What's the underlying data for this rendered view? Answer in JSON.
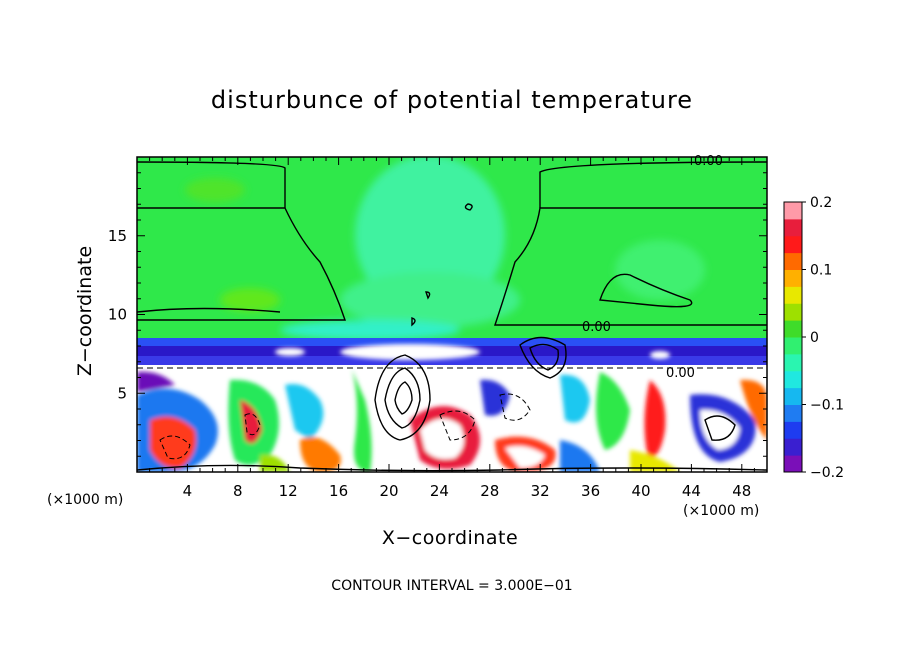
{
  "chart_data": {
    "type": "heatmap",
    "title": "disturbunce of potential temperature",
    "xlabel": "X−coordinate",
    "ylabel": "Z−coordinate",
    "x_unit": "(×1000 m)",
    "x_unit_right": "(×1000 m)",
    "xlim": [
      0,
      50
    ],
    "ylim": [
      0,
      20
    ],
    "xticks": [
      4,
      8,
      12,
      16,
      20,
      24,
      28,
      32,
      36,
      40,
      44,
      48
    ],
    "yticks": [
      5,
      10,
      15
    ],
    "colorbar": {
      "range": [
        -0.2,
        0.2
      ],
      "tick_values": [
        0.2,
        0.1,
        0,
        -0.1,
        -0.2
      ],
      "tick_labels": [
        "0.2",
        "0.1",
        "0",
        "−0.1",
        "−0.2"
      ],
      "colors": [
        "#7a0fb8",
        "#3a1fd0",
        "#1e3cf0",
        "#1f7cf2",
        "#16b8f0",
        "#20e8e0",
        "#2af5b0",
        "#30f070",
        "#3fdc2a",
        "#9ee000",
        "#e8e800",
        "#ffb000",
        "#ff6a00",
        "#ff1a1a",
        "#e81e3c",
        "#ff9aa8"
      ]
    },
    "contour_label": "0.00",
    "footer": "CONTOUR INTERVAL = 3.000E−01"
  }
}
